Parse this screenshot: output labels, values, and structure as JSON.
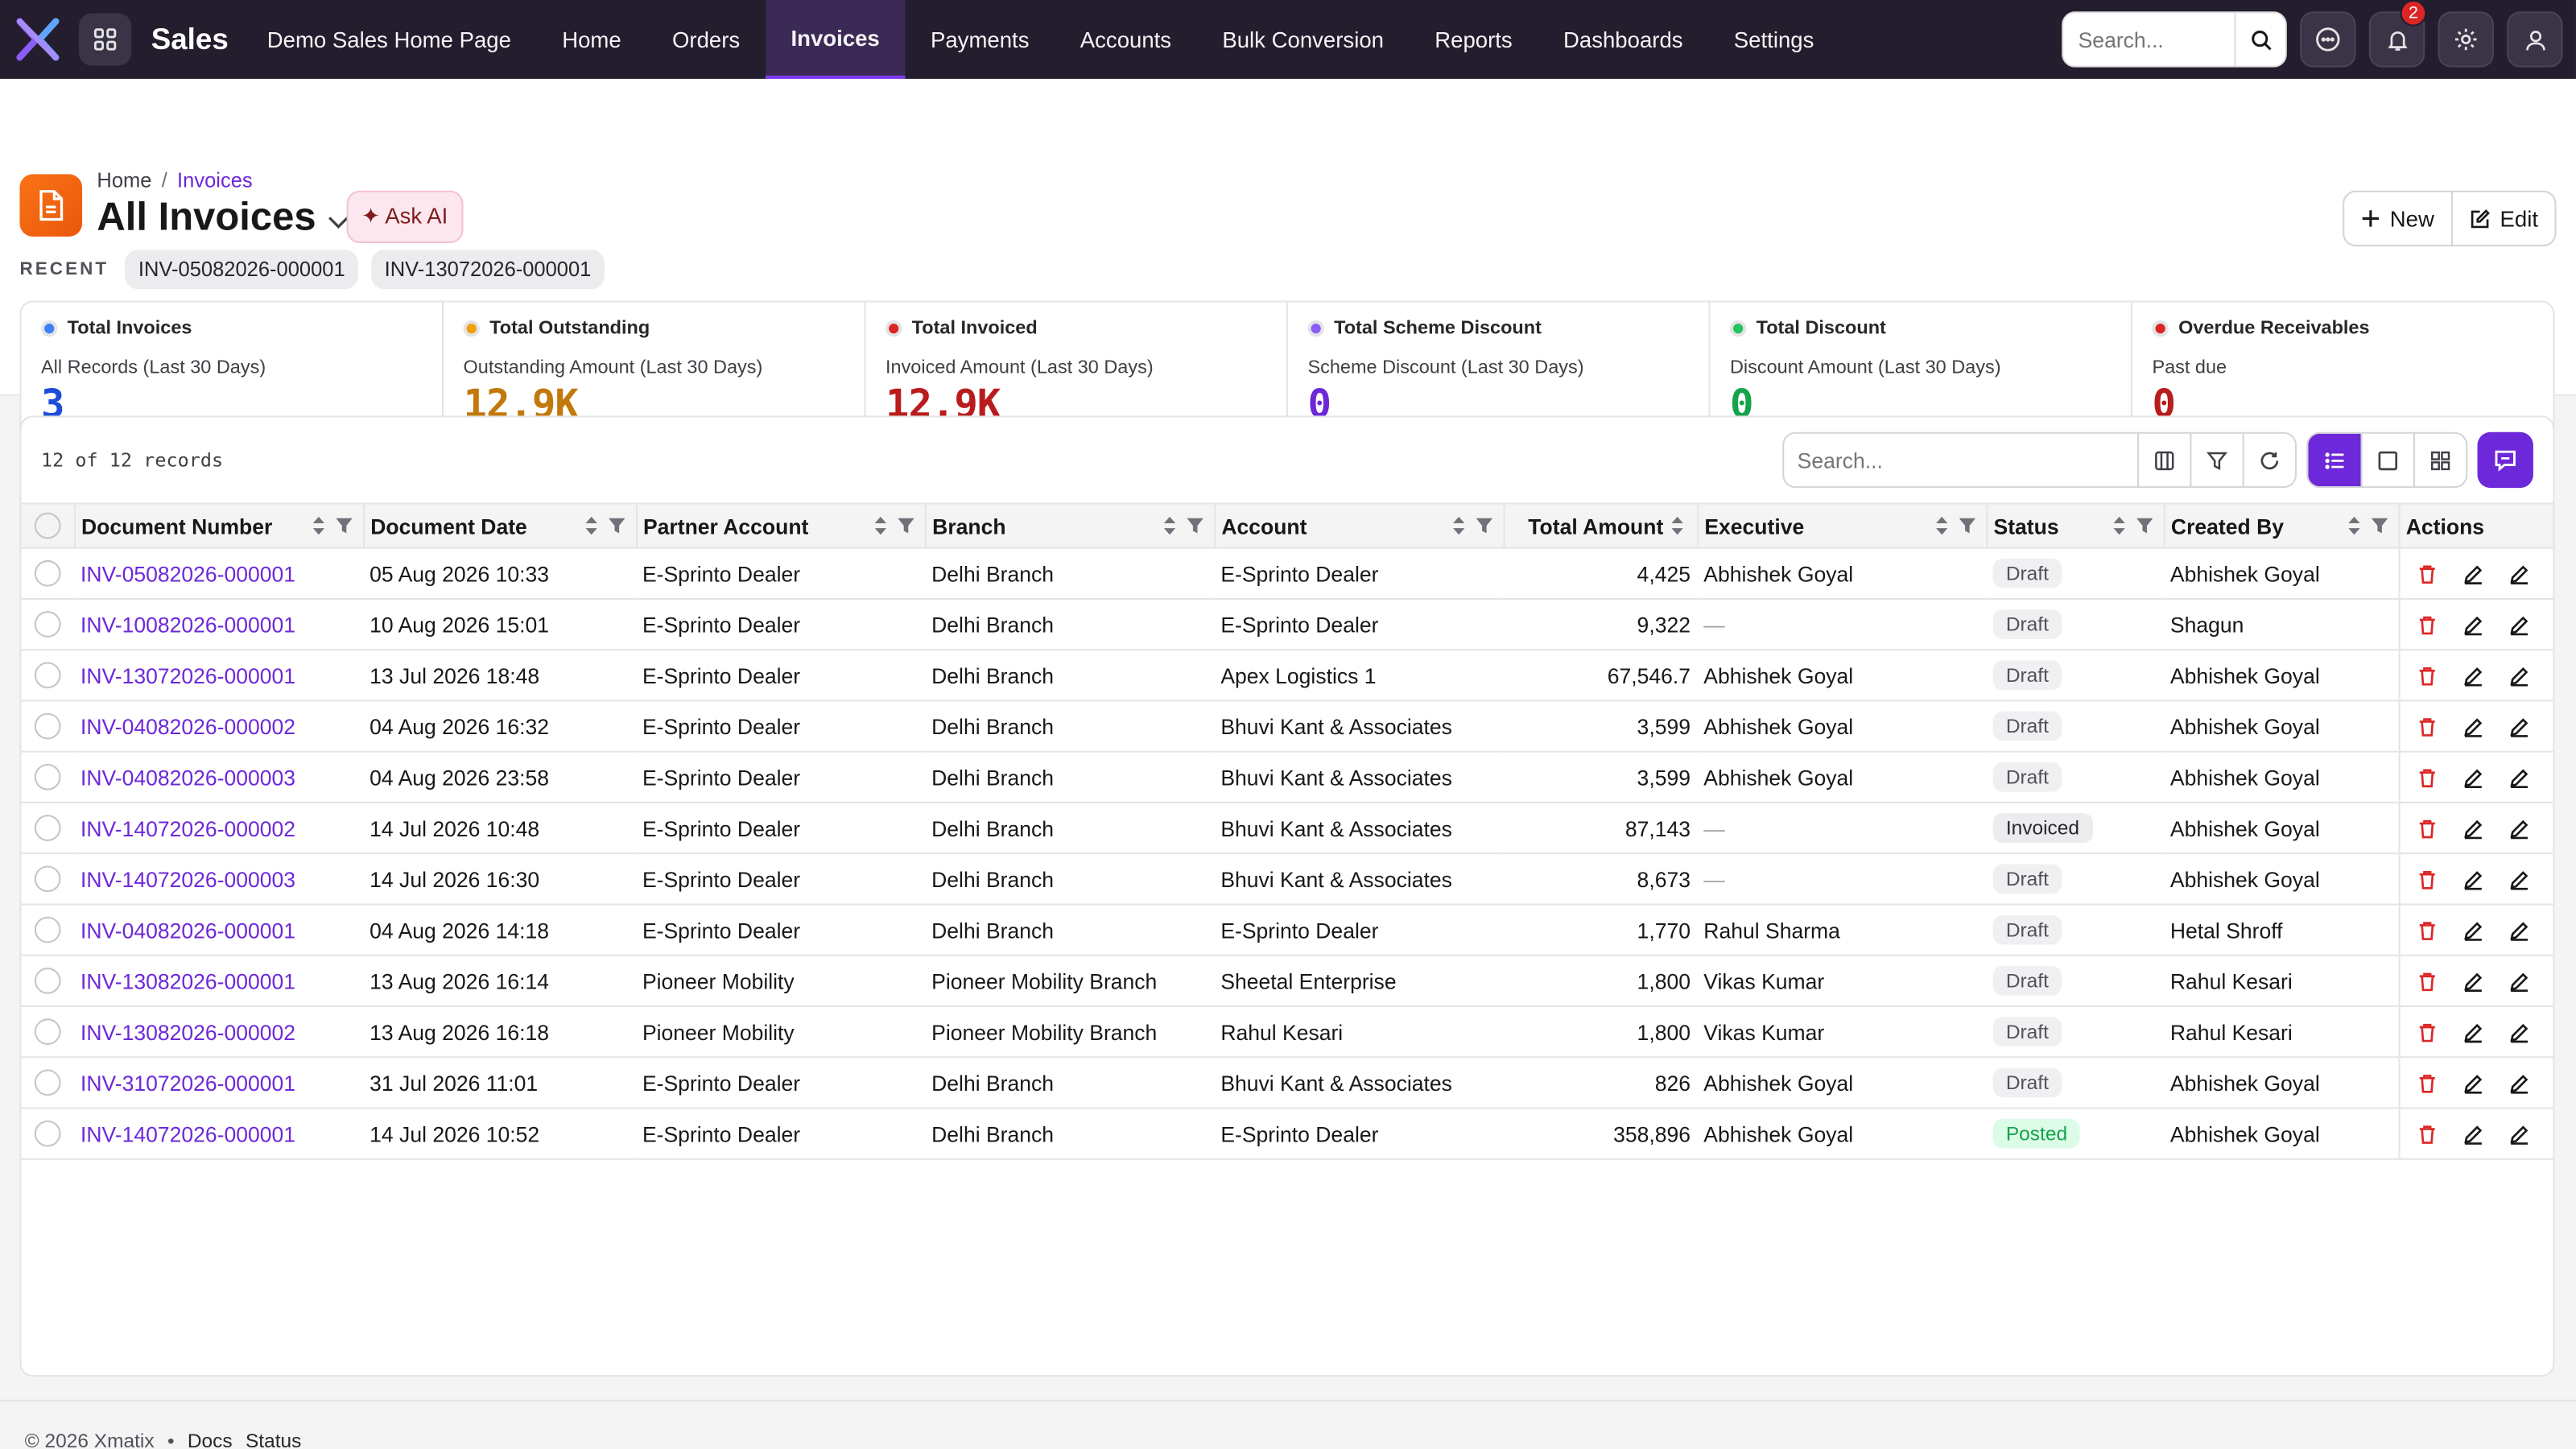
{
  "app": {
    "name": "Sales",
    "brand_color": "#6d28d9",
    "topbar_color": "#231d2e"
  },
  "nav": [
    {
      "label": "Demo Sales Home Page",
      "active": false
    },
    {
      "label": "Home",
      "active": false
    },
    {
      "label": "Orders",
      "active": false
    },
    {
      "label": "Invoices",
      "active": true
    },
    {
      "label": "Payments",
      "active": false
    },
    {
      "label": "Accounts",
      "active": false
    },
    {
      "label": "Bulk Conversion",
      "active": false
    },
    {
      "label": "Reports",
      "active": false
    },
    {
      "label": "Dashboards",
      "active": false
    },
    {
      "label": "Settings",
      "active": false
    }
  ],
  "top": {
    "search_placeholder": "Search...",
    "notification_count": "2"
  },
  "header": {
    "breadcrumb": [
      "Home",
      "Invoices"
    ],
    "title": "All Invoices",
    "ask_ai": "✦ Ask AI",
    "new_label": "New",
    "edit_label": "Edit",
    "recent_label": "RECENT",
    "recent": [
      "INV-05082026-000001",
      "INV-13072026-000001"
    ]
  },
  "cards": [
    {
      "title": "Total Invoices",
      "sub": "All Records (Last 30 Days)",
      "value": "3",
      "color": "#1d4ed8",
      "dot": "#3b82f6",
      "bar": "#93c5fd"
    },
    {
      "title": "Total Outstanding",
      "sub": "Outstanding Amount (Last 30 Days)",
      "value": "12.9K",
      "color": "#c2780a",
      "dot": "#f59e0b",
      "bar": "#fcd34d"
    },
    {
      "title": "Total Invoiced",
      "sub": "Invoiced Amount (Last 30 Days)",
      "value": "12.9K",
      "color": "#b91c1c",
      "dot": "#dc2626",
      "bar": "#f87171"
    },
    {
      "title": "Total Scheme Discount",
      "sub": "Scheme Discount (Last 30 Days)",
      "value": "0",
      "color": "#6d28d9",
      "dot": "#8b5cf6",
      "bar": "#c4b5fd"
    },
    {
      "title": "Total Discount",
      "sub": "Discount Amount (Last 30 Days)",
      "value": "0",
      "color": "#16a34a",
      "dot": "#22c55e",
      "bar": "#86efac"
    },
    {
      "title": "Overdue Receivables",
      "sub": "Past due",
      "value": "0",
      "color": "#b91c1c",
      "dot": "#dc2626",
      "bar": "#f87171"
    }
  ],
  "table": {
    "records_text": "12 of 12 records",
    "search_placeholder": "Search...",
    "columns": [
      "Document Number",
      "Document Date",
      "Partner Account",
      "Branch",
      "Account",
      "Total Amount",
      "Executive",
      "Status",
      "Created By",
      "Actions"
    ],
    "rows": [
      {
        "doc": "INV-05082026-000001",
        "date": "05 Aug 2026 10:33",
        "partner": "E-Sprinto Dealer",
        "branch": "Delhi Branch",
        "account": "E-Sprinto Dealer",
        "amount": "4,425",
        "exec": "Abhishek Goyal",
        "status": "Draft",
        "created": "Abhishek Goyal"
      },
      {
        "doc": "INV-10082026-000001",
        "date": "10 Aug 2026 15:01",
        "partner": "E-Sprinto Dealer",
        "branch": "Delhi Branch",
        "account": "E-Sprinto Dealer",
        "amount": "9,322",
        "exec": "—",
        "status": "Draft",
        "created": "Shagun"
      },
      {
        "doc": "INV-13072026-000001",
        "date": "13 Jul 2026 18:48",
        "partner": "E-Sprinto Dealer",
        "branch": "Delhi Branch",
        "account": "Apex Logistics 1",
        "amount": "67,546.7",
        "exec": "Abhishek Goyal",
        "status": "Draft",
        "created": "Abhishek Goyal"
      },
      {
        "doc": "INV-04082026-000002",
        "date": "04 Aug 2026 16:32",
        "partner": "E-Sprinto Dealer",
        "branch": "Delhi Branch",
        "account": "Bhuvi Kant & Associates",
        "amount": "3,599",
        "exec": "Abhishek Goyal",
        "status": "Draft",
        "created": "Abhishek Goyal"
      },
      {
        "doc": "INV-04082026-000003",
        "date": "04 Aug 2026 23:58",
        "partner": "E-Sprinto Dealer",
        "branch": "Delhi Branch",
        "account": "Bhuvi Kant & Associates",
        "amount": "3,599",
        "exec": "Abhishek Goyal",
        "status": "Draft",
        "created": "Abhishek Goyal"
      },
      {
        "doc": "INV-14072026-000002",
        "date": "14 Jul 2026 10:48",
        "partner": "E-Sprinto Dealer",
        "branch": "Delhi Branch",
        "account": "Bhuvi Kant & Associates",
        "amount": "87,143",
        "exec": "—",
        "status": "Invoiced",
        "created": "Abhishek Goyal"
      },
      {
        "doc": "INV-14072026-000003",
        "date": "14 Jul 2026 16:30",
        "partner": "E-Sprinto Dealer",
        "branch": "Delhi Branch",
        "account": "Bhuvi Kant & Associates",
        "amount": "8,673",
        "exec": "—",
        "status": "Draft",
        "created": "Abhishek Goyal"
      },
      {
        "doc": "INV-04082026-000001",
        "date": "04 Aug 2026 14:18",
        "partner": "E-Sprinto Dealer",
        "branch": "Delhi Branch",
        "account": "E-Sprinto Dealer",
        "amount": "1,770",
        "exec": "Rahul Sharma",
        "status": "Draft",
        "created": "Hetal Shroff"
      },
      {
        "doc": "INV-13082026-000001",
        "date": "13 Aug 2026 16:14",
        "partner": "Pioneer Mobility",
        "branch": "Pioneer Mobility Branch",
        "account": "Sheetal Enterprise",
        "amount": "1,800",
        "exec": "Vikas Kumar",
        "status": "Draft",
        "created": "Rahul Kesari"
      },
      {
        "doc": "INV-13082026-000002",
        "date": "13 Aug 2026 16:18",
        "partner": "Pioneer Mobility",
        "branch": "Pioneer Mobility Branch",
        "account": "Rahul Kesari",
        "amount": "1,800",
        "exec": "Vikas Kumar",
        "status": "Draft",
        "created": "Rahul Kesari"
      },
      {
        "doc": "INV-31072026-000001",
        "date": "31 Jul 2026 11:01",
        "partner": "E-Sprinto Dealer",
        "branch": "Delhi Branch",
        "account": "Bhuvi Kant & Associates",
        "amount": "826",
        "exec": "Abhishek Goyal",
        "status": "Draft",
        "created": "Abhishek Goyal"
      },
      {
        "doc": "INV-14072026-000001",
        "date": "14 Jul 2026 10:52",
        "partner": "E-Sprinto Dealer",
        "branch": "Delhi Branch",
        "account": "E-Sprinto Dealer",
        "amount": "358,896",
        "exec": "Abhishek Goyal",
        "status": "Posted",
        "created": "Abhishek Goyal"
      }
    ]
  },
  "footer": {
    "copyright": "© 2026 Xmatix",
    "bullet": "•",
    "links": [
      "Docs",
      "Status"
    ]
  }
}
